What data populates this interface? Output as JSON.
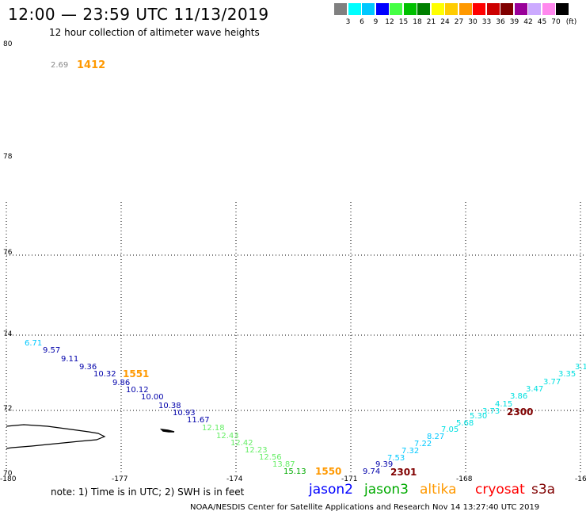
{
  "title": "12:00 — 23:59 UTC 11/13/2019",
  "subtitle": "12 hour collection of altimeter wave heights",
  "legend": {
    "unit": "(ft)",
    "items": [
      {
        "color": "#808080",
        "label": "3"
      },
      {
        "color": "#00ffff",
        "label": "6"
      },
      {
        "color": "#00c8ff",
        "label": "9"
      },
      {
        "color": "#0000ff",
        "label": "12"
      },
      {
        "color": "#44ff44",
        "label": "15"
      },
      {
        "color": "#00c000",
        "label": "18"
      },
      {
        "color": "#008000",
        "label": "21"
      },
      {
        "color": "#ffff00",
        "label": "24"
      },
      {
        "color": "#ffcc00",
        "label": "27"
      },
      {
        "color": "#ff9900",
        "label": "30"
      },
      {
        "color": "#ff0000",
        "label": "33"
      },
      {
        "color": "#cc0000",
        "label": "36"
      },
      {
        "color": "#800000",
        "label": "39"
      },
      {
        "color": "#990099",
        "label": "42"
      },
      {
        "color": "#ccaaff",
        "label": "45"
      },
      {
        "color": "#ff88ee",
        "label": "70"
      },
      {
        "color": "#000000",
        "label": ""
      }
    ]
  },
  "axes": {
    "lat_labels": [
      "80",
      "78",
      "76",
      "74",
      "72",
      "70"
    ],
    "lon_labels": [
      "-180",
      "-177",
      "-174",
      "-171",
      "-168",
      "-16"
    ]
  },
  "isolated": {
    "value": "2.69",
    "time": "1412"
  },
  "track_a": [
    {
      "v": "6.71",
      "c": "#00c8ff"
    },
    {
      "v": "9.57",
      "c": "#0000aa"
    },
    {
      "v": "9.11",
      "c": "#0000aa"
    },
    {
      "v": "9.36",
      "c": "#0000aa"
    },
    {
      "v": "10.32",
      "c": "#0000aa"
    },
    {
      "v": "9.86",
      "c": "#0000aa"
    },
    {
      "v": "10.12",
      "c": "#0000aa"
    },
    {
      "v": "10.00",
      "c": "#0000aa"
    },
    {
      "v": "10.38",
      "c": "#0000aa"
    },
    {
      "v": "10.93",
      "c": "#0000aa"
    },
    {
      "v": "11.67",
      "c": "#0000aa"
    },
    {
      "v": "12.18",
      "c": "#66ee66"
    },
    {
      "v": "12.43",
      "c": "#66ee66"
    },
    {
      "v": "12.42",
      "c": "#66ee66"
    },
    {
      "v": "12.23",
      "c": "#66ee66"
    },
    {
      "v": "12.56",
      "c": "#66ee66"
    },
    {
      "v": "13.87",
      "c": "#66ee66"
    },
    {
      "v": "15.13",
      "c": "#00aa00"
    }
  ],
  "track_b": [
    {
      "v": "9.74",
      "c": "#0000aa"
    },
    {
      "v": "9.39",
      "c": "#0000aa"
    },
    {
      "v": "7.53",
      "c": "#00c8ff"
    },
    {
      "v": "7.32",
      "c": "#00c8ff"
    },
    {
      "v": "7.22",
      "c": "#00c8ff"
    },
    {
      "v": "8.27",
      "c": "#00c8ff"
    },
    {
      "v": "7.05",
      "c": "#00e0e0"
    },
    {
      "v": "5.68",
      "c": "#00e0e0"
    },
    {
      "v": "5.30",
      "c": "#00e0e0"
    },
    {
      "v": "3.73",
      "c": "#00e0e0"
    },
    {
      "v": "4.15",
      "c": "#00e0e0"
    },
    {
      "v": "3.86",
      "c": "#00e0e0"
    },
    {
      "v": "3.47",
      "c": "#00e0e0"
    },
    {
      "v": "3.77",
      "c": "#00e0e0"
    },
    {
      "v": "3.35",
      "c": "#00e0e0"
    },
    {
      "v": "3.1",
      "c": "#00e0e0"
    }
  ],
  "pass_times": {
    "t1551": "1551",
    "t1550": "1550",
    "t2301": "2301",
    "t2300": "2300"
  },
  "note": "note:  1) Time is in UTC;  2) SWH is in feet",
  "satellites": [
    {
      "name": "jason2",
      "color": "#0000ff"
    },
    {
      "name": "jason3",
      "color": "#00aa00"
    },
    {
      "name": "altika",
      "color": "#ff9900"
    },
    {
      "name": "cryosat",
      "color": "#ff0000"
    },
    {
      "name": "s3a",
      "color": "#800000"
    }
  ],
  "credit": "NOAA/NESDIS Center for Satellite Applications and Research     Nov 14 13:27:40 UTC 2019"
}
